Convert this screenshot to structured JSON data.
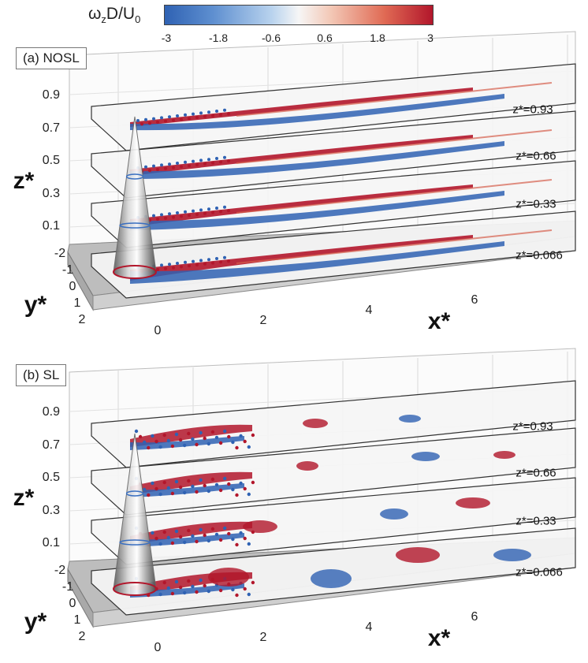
{
  "colorbar": {
    "label_main": "ω",
    "label_sub1": "z",
    "label_mid": "D/U",
    "label_sub2": "0",
    "ticks": [
      "-3",
      "-1.8",
      "-0.6",
      "0.6",
      "1.8",
      "3"
    ],
    "range": [
      -3,
      3
    ],
    "colors": [
      "#2f62b3",
      "#5e8fd0",
      "#b9d3ee",
      "#f6f6f6",
      "#f3c8b6",
      "#e06a54",
      "#b2162b"
    ]
  },
  "axes": {
    "z_title": "z*",
    "y_title": "y*",
    "x_title": "x*",
    "z_ticks": [
      "0.9",
      "0.7",
      "0.5",
      "0.3",
      "0.1"
    ],
    "y_ticks": [
      "-2",
      "-1",
      "0",
      "1",
      "2"
    ],
    "x_ticks": [
      "0",
      "2",
      "4",
      "6"
    ]
  },
  "panels": [
    {
      "label": "(a) NOSL",
      "plane_labels": [
        "z*=0.93",
        "z*=0.66",
        "z*=0.33",
        "z*=0.066"
      ]
    },
    {
      "label": "(b) SL",
      "plane_labels": [
        "z*=0.93",
        "z*=0.66",
        "z*=0.33",
        "z*=0.066"
      ]
    }
  ]
}
